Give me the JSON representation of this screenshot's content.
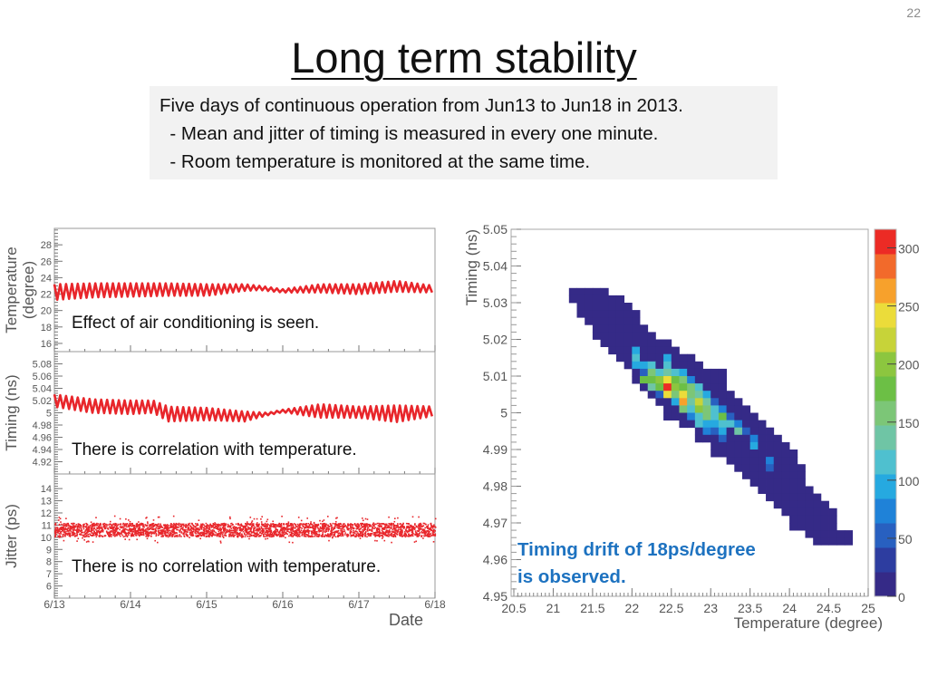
{
  "page_number": "22",
  "title": "Long term stability",
  "description": {
    "lines": [
      "Five days of continuous operation from Jun13 to Jun18 in 2013.",
      "  - Mean and jitter of timing is measured in every one minute.",
      "  - Room temperature is monitored at the same time."
    ]
  },
  "annotations": {
    "temperature": "Effect of air conditioning is seen.",
    "timing": "There is correlation with temperature.",
    "jitter": "There is no correlation with temperature.",
    "drift_line1": "Timing drift of 18ps/degree",
    "drift_line2": "is observed."
  },
  "chart_data": [
    {
      "type": "line",
      "ylabel": "Temperature\n(degree)",
      "ylabel_lines": [
        "Temperature",
        "(degree)"
      ],
      "ylim": [
        15,
        30
      ],
      "yticks": [
        "16",
        "18",
        "20",
        "22",
        "24",
        "26",
        "28"
      ],
      "xlim": [
        13,
        18
      ],
      "xticks": [
        "6/13",
        "6/14",
        "6/15",
        "6/16",
        "6/17",
        "6/18"
      ],
      "xlabel": "Date",
      "color": "#e8262b",
      "oscillation_envelope": {
        "date": [
          13,
          13.5,
          14,
          14.5,
          15,
          15.5,
          15.7,
          16,
          16.5,
          17,
          17.5,
          18
        ],
        "min": [
          21.3,
          21.6,
          21.7,
          21.8,
          21.8,
          22.4,
          22.5,
          22.2,
          22.2,
          22.0,
          22.3,
          22.2
        ],
        "max": [
          23.2,
          23.3,
          23.3,
          23.3,
          23.2,
          23.2,
          23.0,
          22.6,
          23.2,
          23.2,
          23.6,
          23.0
        ]
      }
    },
    {
      "type": "line",
      "ylabel": "Timing (ns)",
      "ylim": [
        4.9,
        5.1
      ],
      "yticks": [
        "4.92",
        "4.94",
        "4.96",
        "4.98",
        "5",
        "5.02",
        "5.04",
        "5.06",
        "5.08"
      ],
      "xlim": [
        13,
        18
      ],
      "color": "#e8262b",
      "oscillation_envelope": {
        "date": [
          13,
          13.5,
          14,
          14.3,
          14.5,
          15,
          15.5,
          15.8,
          16,
          16.5,
          17,
          17.5,
          18
        ],
        "min": [
          5.01,
          5.0,
          4.998,
          5.0,
          4.986,
          4.988,
          4.986,
          4.996,
          5.001,
          4.992,
          4.992,
          4.985,
          4.995
        ],
        "max": [
          5.03,
          5.022,
          5.02,
          5.02,
          5.01,
          5.008,
          5.002,
          5.0,
          5.005,
          5.014,
          5.01,
          5.012,
          5.01
        ]
      }
    },
    {
      "type": "scatter",
      "ylabel": "Jitter (ps)",
      "ylim": [
        5,
        15.2
      ],
      "yticks": [
        "6",
        "7",
        "8",
        "9",
        "10",
        "11",
        "12",
        "13",
        "14"
      ],
      "xlim": [
        13,
        18
      ],
      "color": "#e8262b",
      "core_band": [
        10.1,
        11.2
      ],
      "outlier_range": [
        9.6,
        11.8
      ]
    },
    {
      "type": "heatmap",
      "xlabel": "Temperature (degree)",
      "ylabel": "Timing (ns)",
      "xlim": [
        20.5,
        25
      ],
      "ylim": [
        4.95,
        5.05
      ],
      "xticks": [
        "20.5",
        "21",
        "21.5",
        "22",
        "22.5",
        "23",
        "23.5",
        "24",
        "24.5",
        "25"
      ],
      "yticks": [
        "4.95",
        "4.96",
        "4.97",
        "4.98",
        "4.99",
        "5",
        "5.01",
        "5.02",
        "5.03",
        "5.04",
        "5.05"
      ],
      "zlim": [
        0,
        316
      ],
      "zticks": [
        "0",
        "50",
        "100",
        "150",
        "200",
        "250",
        "300"
      ],
      "bin_width": [
        0.1,
        0.002
      ],
      "base_count": 15,
      "rows": [
        {
          "timing": 5.032,
          "t_range": [
            21.2,
            21.6
          ]
        },
        {
          "timing": 5.03,
          "t_range": [
            21.2,
            21.8
          ]
        },
        {
          "timing": 5.028,
          "t_range": [
            21.3,
            21.9
          ]
        },
        {
          "timing": 5.026,
          "t_range": [
            21.3,
            22.0
          ]
        },
        {
          "timing": 5.024,
          "t_range": [
            21.4,
            22.0
          ]
        },
        {
          "timing": 5.022,
          "t_range": [
            21.5,
            22.1
          ]
        },
        {
          "timing": 5.02,
          "t_range": [
            21.5,
            22.2
          ]
        },
        {
          "timing": 5.018,
          "t_range": [
            21.6,
            22.4
          ]
        },
        {
          "timing": 5.016,
          "t_range": [
            21.7,
            22.5
          ]
        },
        {
          "timing": 5.014,
          "t_range": [
            21.8,
            22.7
          ]
        },
        {
          "timing": 5.012,
          "t_range": [
            21.9,
            22.8
          ]
        },
        {
          "timing": 5.01,
          "t_range": [
            22.0,
            23.1
          ]
        },
        {
          "timing": 5.008,
          "t_range": [
            22.0,
            23.1
          ]
        },
        {
          "timing": 5.006,
          "t_range": [
            22.1,
            23.1
          ]
        },
        {
          "timing": 5.004,
          "t_range": [
            22.2,
            23.2
          ]
        },
        {
          "timing": 5.002,
          "t_range": [
            22.3,
            23.3
          ]
        },
        {
          "timing": 5.0,
          "t_range": [
            22.4,
            23.4
          ]
        },
        {
          "timing": 4.998,
          "t_range": [
            22.4,
            23.5
          ]
        },
        {
          "timing": 4.996,
          "t_range": [
            22.6,
            23.6
          ]
        },
        {
          "timing": 4.994,
          "t_range": [
            22.8,
            23.7
          ]
        },
        {
          "timing": 4.992,
          "t_range": [
            22.8,
            23.8
          ]
        },
        {
          "timing": 4.99,
          "t_range": [
            23.0,
            23.9
          ]
        },
        {
          "timing": 4.988,
          "t_range": [
            23.0,
            24.0
          ]
        },
        {
          "timing": 4.986,
          "t_range": [
            23.2,
            24.0
          ]
        },
        {
          "timing": 4.984,
          "t_range": [
            23.3,
            24.1
          ]
        },
        {
          "timing": 4.982,
          "t_range": [
            23.4,
            24.1
          ]
        },
        {
          "timing": 4.98,
          "t_range": [
            23.5,
            24.1
          ]
        },
        {
          "timing": 4.978,
          "t_range": [
            23.6,
            24.2
          ]
        },
        {
          "timing": 4.976,
          "t_range": [
            23.7,
            24.3
          ]
        },
        {
          "timing": 4.974,
          "t_range": [
            23.8,
            24.4
          ]
        },
        {
          "timing": 4.972,
          "t_range": [
            23.9,
            24.5
          ]
        },
        {
          "timing": 4.97,
          "t_range": [
            24.0,
            24.5
          ]
        },
        {
          "timing": 4.968,
          "t_range": [
            24.0,
            24.5
          ]
        },
        {
          "timing": 4.966,
          "t_range": [
            24.2,
            24.7
          ]
        },
        {
          "timing": 4.964,
          "t_range": [
            24.3,
            24.7
          ]
        }
      ],
      "cells": [
        [
          22.0,
          5.016,
          90
        ],
        [
          22.0,
          5.014,
          110
        ],
        [
          22.0,
          5.012,
          95
        ],
        [
          22.1,
          5.012,
          100
        ],
        [
          22.2,
          5.012,
          110
        ],
        [
          22.4,
          5.014,
          90
        ],
        [
          22.4,
          5.012,
          120
        ],
        [
          22.1,
          5.01,
          60
        ],
        [
          22.2,
          5.01,
          160
        ],
        [
          22.3,
          5.01,
          120
        ],
        [
          22.4,
          5.01,
          140
        ],
        [
          22.5,
          5.01,
          120
        ],
        [
          22.6,
          5.01,
          90
        ],
        [
          22.1,
          5.008,
          170
        ],
        [
          22.2,
          5.008,
          180
        ],
        [
          22.3,
          5.008,
          190
        ],
        [
          22.4,
          5.008,
          245
        ],
        [
          22.5,
          5.008,
          170
        ],
        [
          22.6,
          5.008,
          160
        ],
        [
          22.7,
          5.008,
          80
        ],
        [
          22.2,
          5.006,
          140
        ],
        [
          22.3,
          5.006,
          180
        ],
        [
          22.4,
          5.006,
          310
        ],
        [
          22.5,
          5.006,
          190
        ],
        [
          22.6,
          5.006,
          170
        ],
        [
          22.7,
          5.006,
          150
        ],
        [
          22.8,
          5.006,
          110
        ],
        [
          22.3,
          5.004,
          60
        ],
        [
          22.4,
          5.004,
          250
        ],
        [
          22.5,
          5.004,
          150
        ],
        [
          22.6,
          5.004,
          250
        ],
        [
          22.7,
          5.004,
          160
        ],
        [
          22.8,
          5.004,
          140
        ],
        [
          22.9,
          5.004,
          90
        ],
        [
          22.5,
          5.002,
          100
        ],
        [
          22.6,
          5.002,
          270
        ],
        [
          22.7,
          5.002,
          130
        ],
        [
          22.8,
          5.002,
          230
        ],
        [
          22.9,
          5.002,
          140
        ],
        [
          23.0,
          5.002,
          60
        ],
        [
          22.6,
          5.0,
          150
        ],
        [
          22.7,
          5.0,
          120
        ],
        [
          22.8,
          5.0,
          190
        ],
        [
          22.9,
          5.0,
          160
        ],
        [
          23.0,
          5.0,
          110
        ],
        [
          23.1,
          5.0,
          80
        ],
        [
          22.7,
          4.998,
          70
        ],
        [
          22.8,
          4.998,
          110
        ],
        [
          22.9,
          4.998,
          150
        ],
        [
          23.0,
          4.998,
          120
        ],
        [
          23.1,
          4.998,
          170
        ],
        [
          23.2,
          4.998,
          60
        ],
        [
          22.8,
          4.996,
          120
        ],
        [
          22.9,
          4.996,
          100
        ],
        [
          23.0,
          4.996,
          90
        ],
        [
          23.1,
          4.996,
          110
        ],
        [
          23.2,
          4.996,
          120
        ],
        [
          23.3,
          4.996,
          80
        ],
        [
          22.9,
          4.994,
          80
        ],
        [
          23.0,
          4.994,
          60
        ],
        [
          23.1,
          4.994,
          90
        ],
        [
          23.3,
          4.994,
          130
        ],
        [
          23.4,
          4.994,
          60
        ],
        [
          23.1,
          4.992,
          60
        ],
        [
          23.5,
          4.992,
          80
        ],
        [
          23.5,
          4.99,
          90
        ],
        [
          23.7,
          4.986,
          80
        ],
        [
          23.7,
          4.984,
          60
        ]
      ],
      "colorscale": [
        "#352a87",
        "#2d3da0",
        "#2860c0",
        "#1f82d8",
        "#26a9e0",
        "#4fc0cf",
        "#6fc5a5",
        "#7cc677",
        "#6cbf45",
        "#8cc63f",
        "#c7d339",
        "#ebdc3a",
        "#f7a12c",
        "#f26a2b",
        "#ec2b25"
      ]
    }
  ]
}
